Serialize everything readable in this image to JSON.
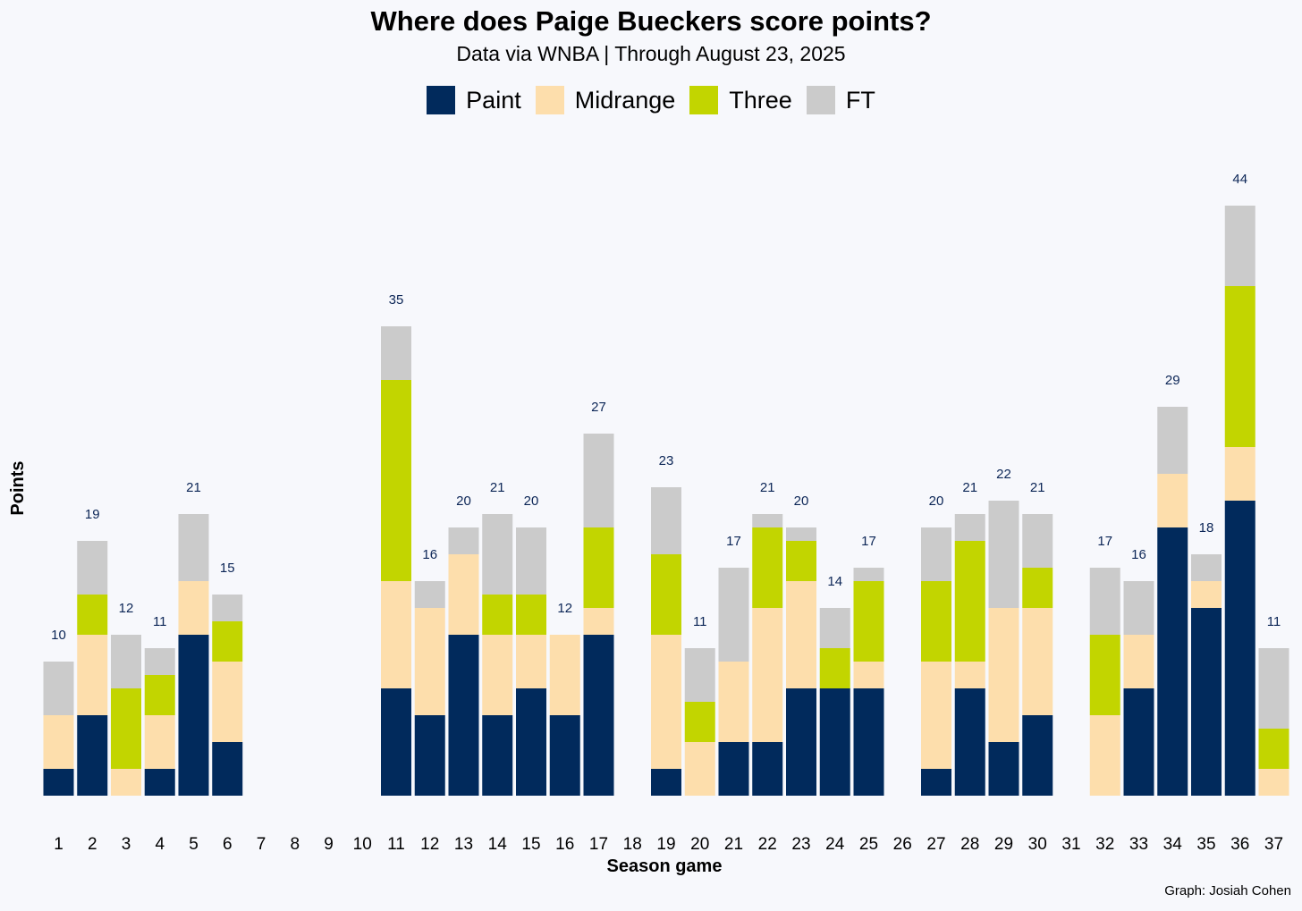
{
  "chart_data": {
    "type": "bar",
    "stacked": true,
    "title": "Where does Paige Bueckers score points?",
    "subtitle": "Data via WNBA  |  Through August 23, 2025",
    "xlabel": "Season game",
    "ylabel": "Points",
    "credit": "Graph: Josiah Cohen",
    "legend_position": "top-center",
    "grid": false,
    "ylim": [
      0,
      46
    ],
    "categories": [
      "1",
      "2",
      "3",
      "4",
      "5",
      "6",
      "7",
      "8",
      "9",
      "10",
      "11",
      "12",
      "13",
      "14",
      "15",
      "16",
      "17",
      "18",
      "19",
      "20",
      "21",
      "22",
      "23",
      "24",
      "25",
      "26",
      "27",
      "28",
      "29",
      "30",
      "31",
      "32",
      "33",
      "34",
      "35",
      "36",
      "37"
    ],
    "series": [
      {
        "name": "Paint",
        "color": "#012a5c",
        "values": [
          2,
          6,
          0,
          2,
          12,
          4,
          0,
          0,
          0,
          0,
          8,
          6,
          12,
          6,
          8,
          6,
          12,
          0,
          2,
          0,
          4,
          4,
          8,
          8,
          8,
          0,
          2,
          8,
          4,
          6,
          0,
          0,
          8,
          20,
          14,
          22,
          0
        ]
      },
      {
        "name": "Midrange",
        "color": "#fddeac",
        "values": [
          4,
          6,
          2,
          4,
          4,
          6,
          0,
          0,
          0,
          0,
          8,
          8,
          6,
          6,
          4,
          6,
          2,
          0,
          10,
          4,
          6,
          10,
          8,
          0,
          2,
          0,
          8,
          2,
          10,
          8,
          0,
          6,
          4,
          4,
          2,
          4,
          2
        ]
      },
      {
        "name": "Three",
        "color": "#c2d500",
        "values": [
          0,
          3,
          6,
          3,
          0,
          3,
          0,
          0,
          0,
          0,
          15,
          0,
          0,
          3,
          3,
          0,
          6,
          0,
          6,
          3,
          0,
          6,
          3,
          3,
          6,
          0,
          6,
          9,
          0,
          3,
          0,
          6,
          0,
          0,
          0,
          12,
          3
        ]
      },
      {
        "name": "FT",
        "color": "#cbcbcb",
        "values": [
          4,
          4,
          4,
          2,
          5,
          2,
          0,
          0,
          0,
          0,
          4,
          2,
          2,
          6,
          5,
          0,
          7,
          0,
          5,
          4,
          7,
          1,
          1,
          3,
          1,
          0,
          4,
          2,
          8,
          4,
          0,
          5,
          4,
          5,
          2,
          6,
          6
        ]
      }
    ],
    "totals": [
      10,
      19,
      12,
      11,
      21,
      15,
      null,
      null,
      null,
      null,
      35,
      16,
      20,
      21,
      20,
      12,
      27,
      null,
      23,
      11,
      17,
      21,
      20,
      14,
      17,
      null,
      20,
      21,
      22,
      21,
      null,
      17,
      16,
      29,
      18,
      44,
      11
    ]
  }
}
